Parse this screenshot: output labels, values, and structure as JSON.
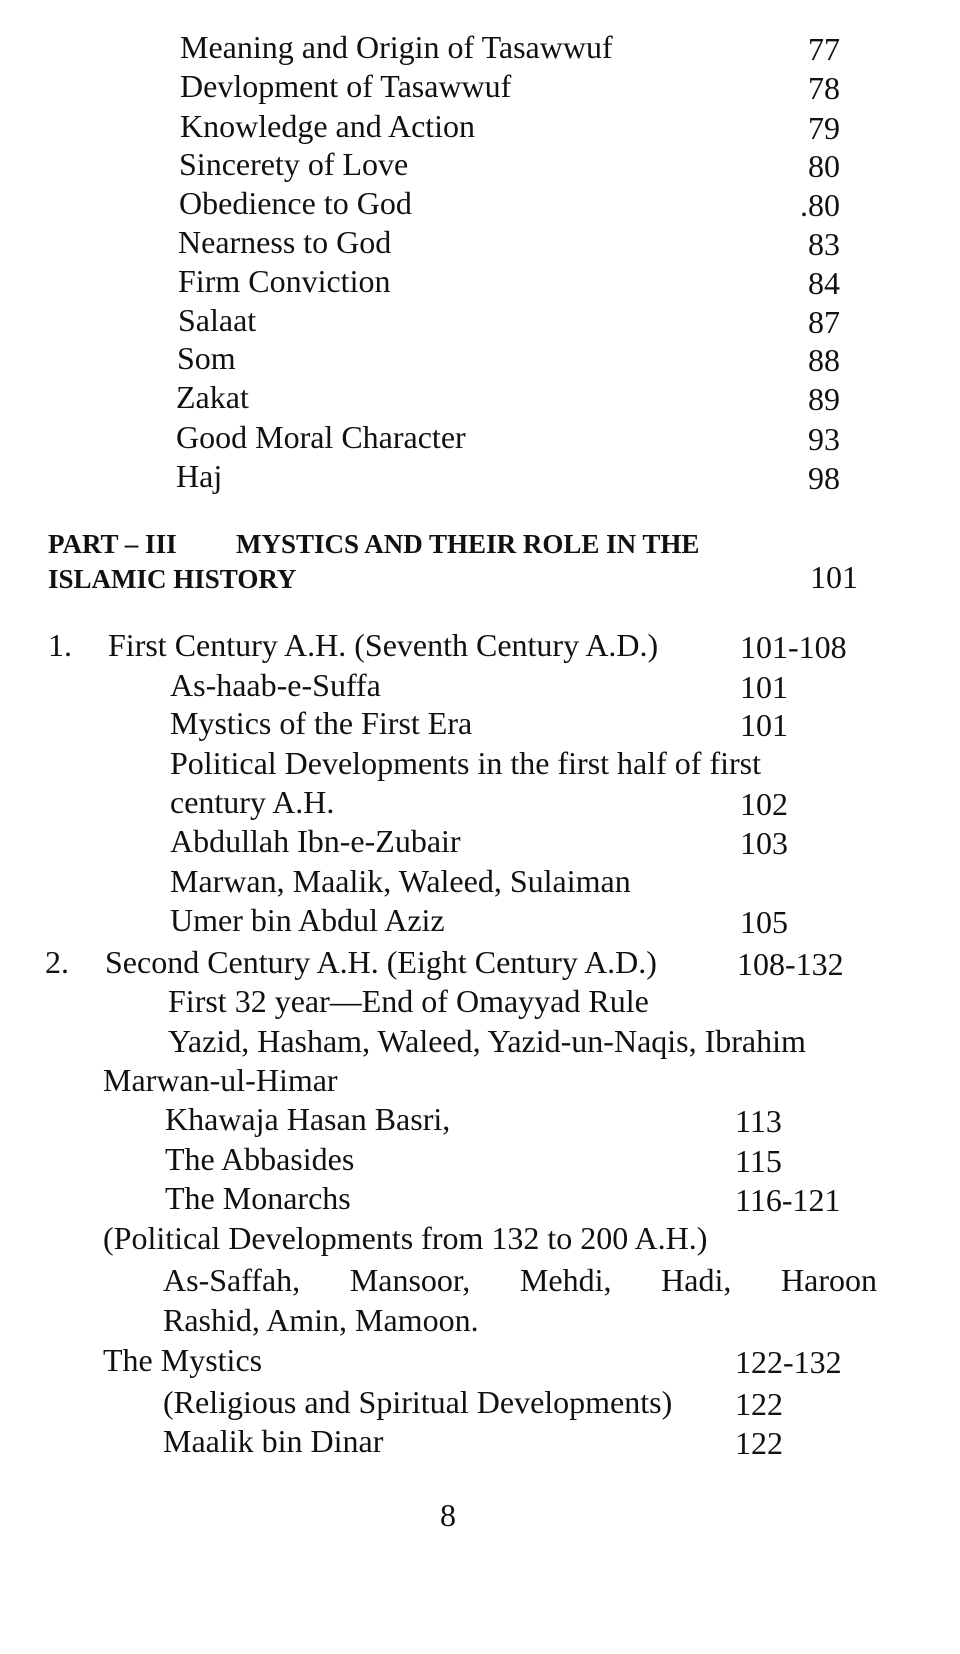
{
  "top_entries": [
    {
      "text": "Meaning and Origin of Tasawwuf",
      "page": "77"
    },
    {
      "text": "Devlopment of Tasawwuf",
      "page": "78"
    },
    {
      "text": "Knowledge and Action",
      "page": "79"
    },
    {
      "text": "Sincerety of Love",
      "page": "80"
    },
    {
      "text": "Obedience to God",
      "page": ".80"
    },
    {
      "text": "Nearness to God",
      "page": "83"
    },
    {
      "text": "Firm Conviction",
      "page": "84"
    },
    {
      "text": "Salaat",
      "page": "87"
    },
    {
      "text": "Som",
      "page": "88"
    },
    {
      "text": "Zakat",
      "page": "89"
    },
    {
      "text": "Good Moral Character",
      "page": "93"
    },
    {
      "text": "Haj",
      "page": "98"
    }
  ],
  "part_iii": {
    "label": "PART – III",
    "title_line1": "MYSTICS AND THEIR ROLE IN THE",
    "title_line2": "ISLAMIC HISTORY",
    "page": "101"
  },
  "entries": [
    {
      "number": "1.",
      "text": "First Century A.H. (Seventh Century A.D.)",
      "page": "101-108"
    },
    {
      "number": "",
      "text": "As-haab-e-Suffa",
      "page": "101"
    },
    {
      "number": "",
      "text": "Mystics of the First Era",
      "page": "101"
    },
    {
      "number": "",
      "text": "Political Developments in the first half of first",
      "page": ""
    },
    {
      "number": "",
      "text": "century A.H.",
      "page": "102"
    },
    {
      "number": "",
      "text": "Abdullah Ibn-e-Zubair",
      "page": "103"
    },
    {
      "number": "",
      "text": "Marwan, Maalik, Waleed, Sulaiman",
      "page": ""
    },
    {
      "number": "",
      "text": "Umer bin Abdul Aziz",
      "page": "105"
    },
    {
      "number": "2.",
      "text": "Second Century A.H. (Eight Century A.D.)",
      "page": "108-132"
    },
    {
      "number": "",
      "text": "First 32 year—End of Omayyad Rule",
      "page": ""
    },
    {
      "number": "",
      "text": "Yazid, Hasham, Waleed, Yazid-un-Naqis, Ibrahim",
      "page": ""
    },
    {
      "number": "",
      "text": "Marwan-ul-Himar",
      "page": ""
    },
    {
      "number": "",
      "text": "Khawaja Hasan Basri,",
      "page": "113"
    },
    {
      "number": "",
      "text": "The Abbasides",
      "page": "115"
    },
    {
      "number": "",
      "text": "The Monarchs",
      "page": "116-121"
    },
    {
      "number": "",
      "text": "(Political Developments from 132 to 200 A.H.)",
      "page": ""
    },
    {
      "number": "",
      "text": "As-Saffah, Mansoor, Mehdi, Hadi, Haroon",
      "page": ""
    },
    {
      "number": "",
      "text": "Rashid, Amin, Mamoon.",
      "page": ""
    },
    {
      "number": "",
      "text": "The Mystics",
      "page": "122-132"
    },
    {
      "number": "",
      "text": "(Religious and Spiritual Developments)",
      "page": "122"
    },
    {
      "number": "",
      "text": "Maalik bin Dinar",
      "page": "122"
    }
  ],
  "page_number": "8"
}
